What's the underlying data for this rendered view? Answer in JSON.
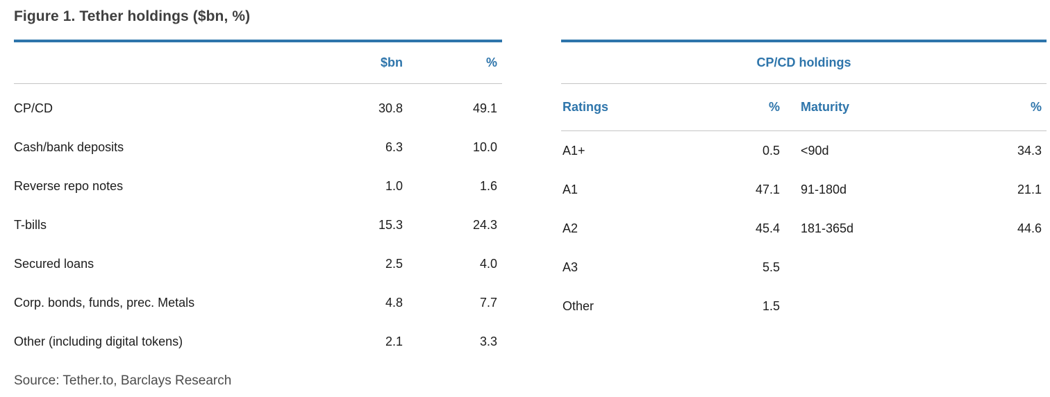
{
  "figure": {
    "title": "Figure 1. Tether holdings ($bn, %)",
    "source": "Source: Tether.to, Barclays Research"
  },
  "colors": {
    "accent_blue": "#2e75ab",
    "title_gray": "#3f3f3f",
    "body_text": "#1c1c1c",
    "divider_gray": "#c5c5c5",
    "source_gray": "#4c4c4c"
  },
  "left_table": {
    "col_bn": "$bn",
    "col_pct": "%",
    "rows": [
      {
        "label": "CP/CD",
        "bn": "30.8",
        "pct": "49.1"
      },
      {
        "label": "Cash/bank deposits",
        "bn": "6.3",
        "pct": "10.0"
      },
      {
        "label": "Reverse repo notes",
        "bn": "1.0",
        "pct": "1.6"
      },
      {
        "label": "T-bills",
        "bn": "15.3",
        "pct": "24.3"
      },
      {
        "label": "Secured loans",
        "bn": "2.5",
        "pct": "4.0"
      },
      {
        "label": "Corp. bonds, funds, prec. Metals",
        "bn": "4.8",
        "pct": "7.7"
      },
      {
        "label": "Other (including digital tokens)",
        "bn": "2.1",
        "pct": "3.3"
      }
    ]
  },
  "right_table": {
    "title": "CP/CD holdings",
    "col_ratings": "Ratings",
    "col_pct1": "%",
    "col_maturity": "Maturity",
    "col_pct2": "%",
    "rows": [
      {
        "rating": "A1+",
        "rating_pct": "0.5",
        "maturity": "<90d",
        "maturity_pct": "34.3"
      },
      {
        "rating": "A1",
        "rating_pct": "47.1",
        "maturity": "91-180d",
        "maturity_pct": "21.1"
      },
      {
        "rating": "A2",
        "rating_pct": "45.4",
        "maturity": "181-365d",
        "maturity_pct": "44.6"
      },
      {
        "rating": "A3",
        "rating_pct": "5.5",
        "maturity": "",
        "maturity_pct": ""
      },
      {
        "rating": "Other",
        "rating_pct": "1.5",
        "maturity": "",
        "maturity_pct": ""
      }
    ]
  },
  "chart_data": [
    {
      "type": "table",
      "title": "Figure 1. Tether holdings ($bn, %)",
      "columns": [
        "",
        "$bn",
        "%"
      ],
      "rows": [
        [
          "CP/CD",
          30.8,
          49.1
        ],
        [
          "Cash/bank deposits",
          6.3,
          10.0
        ],
        [
          "Reverse repo notes",
          1.0,
          1.6
        ],
        [
          "T-bills",
          15.3,
          24.3
        ],
        [
          "Secured loans",
          2.5,
          4.0
        ],
        [
          "Corp. bonds, funds, prec. Metals",
          4.8,
          7.7
        ],
        [
          "Other (including digital tokens)",
          2.1,
          3.3
        ]
      ],
      "source": "Source: Tether.to, Barclays Research"
    },
    {
      "type": "table",
      "title": "CP/CD holdings",
      "columns": [
        "Ratings",
        "%",
        "Maturity",
        "%"
      ],
      "rows": [
        [
          "A1+",
          0.5,
          "<90d",
          34.3
        ],
        [
          "A1",
          47.1,
          "91-180d",
          21.1
        ],
        [
          "A2",
          45.4,
          "181-365d",
          44.6
        ],
        [
          "A3",
          5.5,
          "",
          ""
        ],
        [
          "Other",
          1.5,
          "",
          ""
        ]
      ]
    }
  ]
}
